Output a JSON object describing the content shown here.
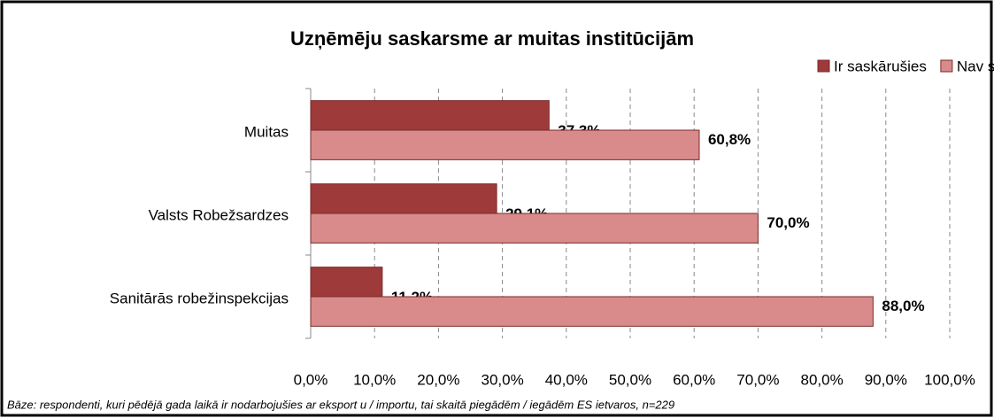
{
  "chart_data": {
    "type": "barh",
    "title": "Uzņēmēju saskarsme ar muitas institūcijām",
    "categories": [
      "Muitas",
      "Valsts Robežsardzes",
      "Sanitārās robežinspekcijas"
    ],
    "series": [
      {
        "name": "Ir saskārušies",
        "color": "#9e3a3a",
        "values": [
          37.3,
          29.1,
          11.2
        ],
        "value_labels": [
          "37,3%",
          "29,1%",
          "11,2%"
        ]
      },
      {
        "name": "Nav saskārušies",
        "color": "#d98a8a",
        "values": [
          60.8,
          70.0,
          88.0
        ],
        "value_labels": [
          "60,8%",
          "70,0%",
          "88,0%"
        ]
      }
    ],
    "xlim": [
      0,
      100
    ],
    "xticks": [
      {
        "value": 0,
        "label": "0,0%"
      },
      {
        "value": 10,
        "label": "10,0%"
      },
      {
        "value": 20,
        "label": "20,0%"
      },
      {
        "value": 30,
        "label": "30,0%"
      },
      {
        "value": 40,
        "label": "40,0%"
      },
      {
        "value": 50,
        "label": "50,0%"
      },
      {
        "value": 60,
        "label": "60,0%"
      },
      {
        "value": 70,
        "label": "70,0%"
      },
      {
        "value": 80,
        "label": "80,0%"
      },
      {
        "value": 90,
        "label": "90,0%"
      },
      {
        "value": 100,
        "label": "100,0%"
      }
    ],
    "grid": true,
    "legend": "top-right",
    "note": "Bāze:  respondenti, kuri pēdējā gada laikā ir nodarbojušies ar eksport u / importu, tai skaitā piegādēm / iegādēm ES ietvaros, n=229"
  }
}
